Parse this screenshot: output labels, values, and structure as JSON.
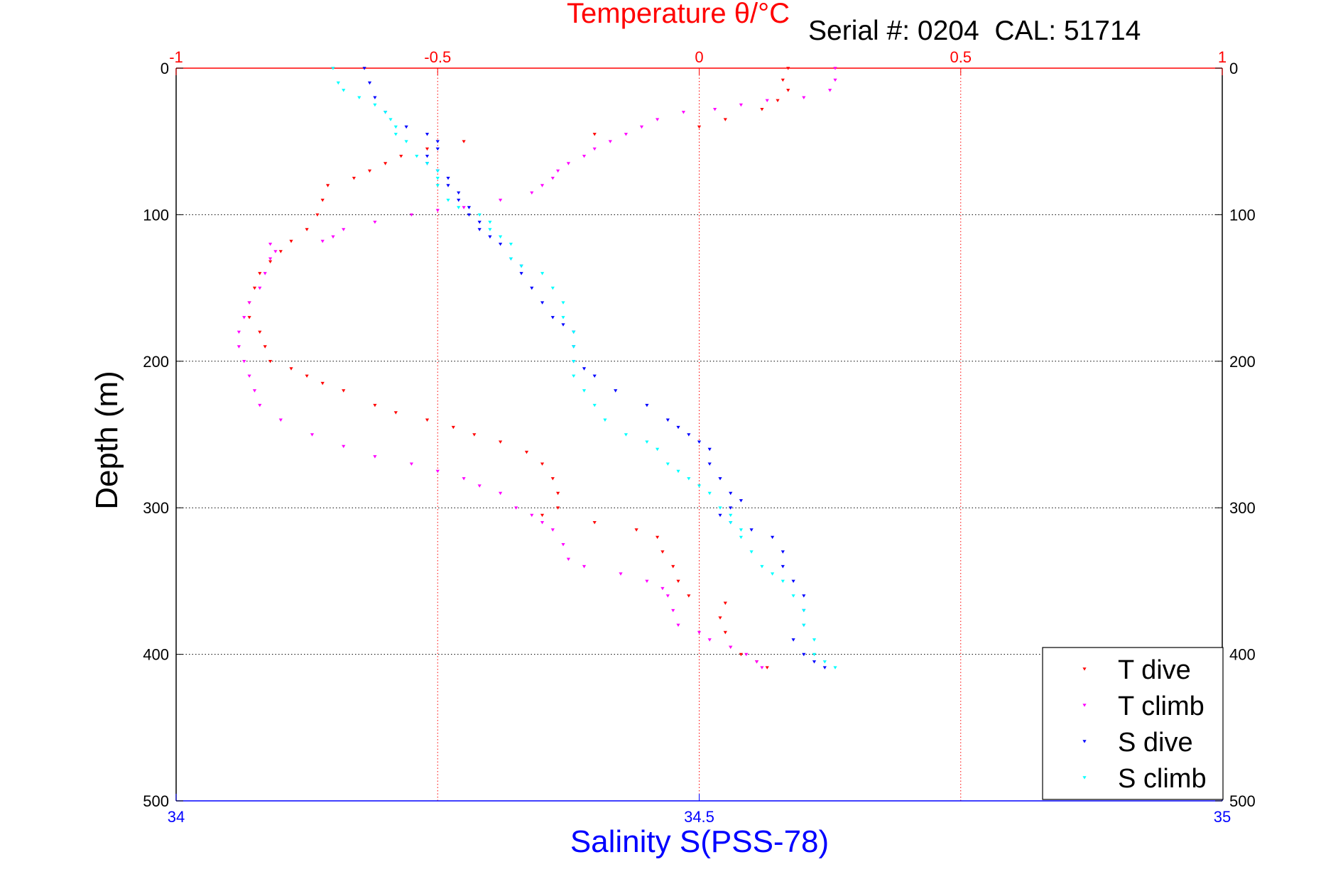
{
  "figure": {
    "serial_label": "Serial #: 0204  CAL: 51714"
  },
  "chart_data": {
    "type": "scatter",
    "title": "Temperature θ/°C",
    "xlabel": "Salinity S(PSS-78)",
    "ylabel": "Depth (m)",
    "axes": {
      "temperature": {
        "range": [
          -1,
          1
        ],
        "ticks": [
          -1,
          -0.5,
          0,
          0.5,
          1
        ],
        "tick_labels": [
          "-1",
          "-0.5",
          "0",
          "0.5",
          "1"
        ],
        "position": "top"
      },
      "salinity": {
        "range": [
          34,
          35
        ],
        "ticks": [
          34,
          34.5,
          35
        ],
        "tick_labels": [
          "34",
          "34.5",
          "35"
        ],
        "position": "bottom"
      },
      "depth": {
        "range": [
          0,
          500
        ],
        "reversed": true,
        "ticks": [
          0,
          100,
          200,
          300,
          400,
          500
        ],
        "tick_labels": [
          "0",
          "100",
          "200",
          "300",
          "400",
          "500"
        ]
      }
    },
    "grid": true,
    "legend_position": "bottom-right",
    "colors": {
      "temperature_axis": "#ff0000",
      "salinity_axis": "#0000ff",
      "T dive": "#ff0000",
      "T climb": "#ff00ff",
      "S dive": "#0000ff",
      "S climb": "#00ffff"
    },
    "series": [
      {
        "name": "T dive",
        "axis": "temperature",
        "points": [
          [
            0.17,
            0
          ],
          [
            0.16,
            8
          ],
          [
            0.17,
            15
          ],
          [
            0.15,
            22
          ],
          [
            0.12,
            28
          ],
          [
            0.05,
            35
          ],
          [
            0,
            40
          ],
          [
            -0.2,
            45
          ],
          [
            -0.45,
            50
          ],
          [
            -0.52,
            55
          ],
          [
            -0.57,
            60
          ],
          [
            -0.6,
            65
          ],
          [
            -0.63,
            70
          ],
          [
            -0.66,
            75
          ],
          [
            -0.71,
            80
          ],
          [
            -0.72,
            90
          ],
          [
            -0.73,
            100
          ],
          [
            -0.75,
            110
          ],
          [
            -0.78,
            118
          ],
          [
            -0.8,
            125
          ],
          [
            -0.82,
            132
          ],
          [
            -0.84,
            140
          ],
          [
            -0.85,
            150
          ],
          [
            -0.86,
            160
          ],
          [
            -0.86,
            170
          ],
          [
            -0.84,
            180
          ],
          [
            -0.83,
            190
          ],
          [
            -0.82,
            200
          ],
          [
            -0.78,
            205
          ],
          [
            -0.75,
            210
          ],
          [
            -0.72,
            215
          ],
          [
            -0.68,
            220
          ],
          [
            -0.62,
            230
          ],
          [
            -0.58,
            235
          ],
          [
            -0.52,
            240
          ],
          [
            -0.47,
            245
          ],
          [
            -0.43,
            250
          ],
          [
            -0.38,
            255
          ],
          [
            -0.33,
            262
          ],
          [
            -0.3,
            270
          ],
          [
            -0.28,
            280
          ],
          [
            -0.27,
            290
          ],
          [
            -0.27,
            300
          ],
          [
            -0.3,
            305
          ],
          [
            -0.2,
            310
          ],
          [
            -0.12,
            315
          ],
          [
            -0.08,
            320
          ],
          [
            -0.07,
            330
          ],
          [
            -0.05,
            340
          ],
          [
            -0.04,
            350
          ],
          [
            -0.02,
            360
          ],
          [
            0.05,
            365
          ],
          [
            0.04,
            375
          ],
          [
            0.05,
            385
          ],
          [
            0.06,
            395
          ],
          [
            0.08,
            400
          ],
          [
            0.11,
            405
          ],
          [
            0.13,
            409
          ]
        ]
      },
      {
        "name": "T climb",
        "axis": "temperature",
        "points": [
          [
            0.26,
            0
          ],
          [
            0.26,
            8
          ],
          [
            0.25,
            15
          ],
          [
            0.2,
            20
          ],
          [
            0.13,
            22
          ],
          [
            0.08,
            25
          ],
          [
            0.03,
            28
          ],
          [
            -0.03,
            30
          ],
          [
            -0.08,
            35
          ],
          [
            -0.11,
            40
          ],
          [
            -0.14,
            45
          ],
          [
            -0.17,
            50
          ],
          [
            -0.2,
            55
          ],
          [
            -0.22,
            60
          ],
          [
            -0.25,
            65
          ],
          [
            -0.27,
            70
          ],
          [
            -0.28,
            75
          ],
          [
            -0.3,
            80
          ],
          [
            -0.32,
            85
          ],
          [
            -0.38,
            90
          ],
          [
            -0.45,
            95
          ],
          [
            -0.5,
            97
          ],
          [
            -0.55,
            100
          ],
          [
            -0.62,
            105
          ],
          [
            -0.68,
            110
          ],
          [
            -0.7,
            115
          ],
          [
            -0.72,
            118
          ],
          [
            -0.82,
            120
          ],
          [
            -0.81,
            125
          ],
          [
            -0.82,
            130
          ],
          [
            -0.83,
            140
          ],
          [
            -0.84,
            150
          ],
          [
            -0.86,
            160
          ],
          [
            -0.87,
            170
          ],
          [
            -0.88,
            180
          ],
          [
            -0.88,
            190
          ],
          [
            -0.87,
            200
          ],
          [
            -0.86,
            210
          ],
          [
            -0.85,
            220
          ],
          [
            -0.84,
            230
          ],
          [
            -0.8,
            240
          ],
          [
            -0.74,
            250
          ],
          [
            -0.68,
            258
          ],
          [
            -0.62,
            265
          ],
          [
            -0.55,
            270
          ],
          [
            -0.5,
            275
          ],
          [
            -0.45,
            280
          ],
          [
            -0.42,
            285
          ],
          [
            -0.38,
            290
          ],
          [
            -0.35,
            300
          ],
          [
            -0.32,
            305
          ],
          [
            -0.3,
            310
          ],
          [
            -0.28,
            315
          ],
          [
            -0.26,
            325
          ],
          [
            -0.25,
            335
          ],
          [
            -0.22,
            340
          ],
          [
            -0.15,
            345
          ],
          [
            -0.1,
            350
          ],
          [
            -0.07,
            355
          ],
          [
            -0.06,
            360
          ],
          [
            -0.05,
            370
          ],
          [
            -0.04,
            380
          ],
          [
            0,
            385
          ],
          [
            0.02,
            390
          ],
          [
            0.06,
            395
          ],
          [
            0.09,
            400
          ],
          [
            0.11,
            405
          ],
          [
            0.12,
            409
          ]
        ]
      },
      {
        "name": "S dive",
        "axis": "salinity",
        "points": [
          [
            34.18,
            0
          ],
          [
            34.185,
            10
          ],
          [
            34.19,
            20
          ],
          [
            34.2,
            30
          ],
          [
            34.22,
            40
          ],
          [
            34.24,
            45
          ],
          [
            34.25,
            50
          ],
          [
            34.25,
            55
          ],
          [
            34.24,
            60
          ],
          [
            34.24,
            65
          ],
          [
            34.25,
            70
          ],
          [
            34.26,
            75
          ],
          [
            34.26,
            80
          ],
          [
            34.27,
            85
          ],
          [
            34.27,
            90
          ],
          [
            34.28,
            95
          ],
          [
            34.28,
            100
          ],
          [
            34.29,
            105
          ],
          [
            34.29,
            110
          ],
          [
            34.3,
            115
          ],
          [
            34.31,
            120
          ],
          [
            34.32,
            130
          ],
          [
            34.33,
            135
          ],
          [
            34.33,
            140
          ],
          [
            34.34,
            150
          ],
          [
            34.35,
            160
          ],
          [
            34.36,
            170
          ],
          [
            34.37,
            175
          ],
          [
            34.38,
            180
          ],
          [
            34.38,
            190
          ],
          [
            34.38,
            200
          ],
          [
            34.39,
            205
          ],
          [
            34.4,
            210
          ],
          [
            34.42,
            220
          ],
          [
            34.45,
            230
          ],
          [
            34.47,
            240
          ],
          [
            34.48,
            245
          ],
          [
            34.49,
            250
          ],
          [
            34.5,
            255
          ],
          [
            34.51,
            260
          ],
          [
            34.51,
            270
          ],
          [
            34.52,
            280
          ],
          [
            34.53,
            290
          ],
          [
            34.54,
            295
          ],
          [
            34.53,
            300
          ],
          [
            34.52,
            305
          ],
          [
            34.53,
            310
          ],
          [
            34.55,
            315
          ],
          [
            34.57,
            320
          ],
          [
            34.58,
            330
          ],
          [
            34.58,
            340
          ],
          [
            34.59,
            350
          ],
          [
            34.6,
            360
          ],
          [
            34.6,
            370
          ],
          [
            34.6,
            380
          ],
          [
            34.59,
            390
          ],
          [
            34.6,
            400
          ],
          [
            34.61,
            405
          ],
          [
            34.62,
            409
          ]
        ]
      },
      {
        "name": "S climb",
        "axis": "salinity",
        "points": [
          [
            34.15,
            0
          ],
          [
            34.155,
            10
          ],
          [
            34.16,
            15
          ],
          [
            34.175,
            20
          ],
          [
            34.19,
            25
          ],
          [
            34.2,
            30
          ],
          [
            34.205,
            35
          ],
          [
            34.21,
            40
          ],
          [
            34.21,
            45
          ],
          [
            34.22,
            50
          ],
          [
            34.23,
            60
          ],
          [
            34.24,
            65
          ],
          [
            34.25,
            70
          ],
          [
            34.25,
            75
          ],
          [
            34.25,
            80
          ],
          [
            34.26,
            90
          ],
          [
            34.27,
            95
          ],
          [
            34.29,
            100
          ],
          [
            34.3,
            105
          ],
          [
            34.3,
            110
          ],
          [
            34.31,
            115
          ],
          [
            34.32,
            120
          ],
          [
            34.32,
            130
          ],
          [
            34.33,
            135
          ],
          [
            34.35,
            140
          ],
          [
            34.36,
            150
          ],
          [
            34.37,
            160
          ],
          [
            34.37,
            170
          ],
          [
            34.38,
            180
          ],
          [
            34.38,
            190
          ],
          [
            34.38,
            200
          ],
          [
            34.38,
            210
          ],
          [
            34.39,
            220
          ],
          [
            34.4,
            230
          ],
          [
            34.41,
            240
          ],
          [
            34.43,
            250
          ],
          [
            34.45,
            255
          ],
          [
            34.46,
            260
          ],
          [
            34.47,
            270
          ],
          [
            34.48,
            275
          ],
          [
            34.49,
            280
          ],
          [
            34.5,
            285
          ],
          [
            34.51,
            290
          ],
          [
            34.52,
            300
          ],
          [
            34.53,
            305
          ],
          [
            34.53,
            310
          ],
          [
            34.54,
            315
          ],
          [
            34.54,
            320
          ],
          [
            34.55,
            330
          ],
          [
            34.56,
            340
          ],
          [
            34.57,
            345
          ],
          [
            34.58,
            350
          ],
          [
            34.59,
            360
          ],
          [
            34.6,
            370
          ],
          [
            34.6,
            380
          ],
          [
            34.61,
            390
          ],
          [
            34.61,
            400
          ],
          [
            34.62,
            405
          ],
          [
            34.63,
            409
          ]
        ]
      }
    ]
  }
}
